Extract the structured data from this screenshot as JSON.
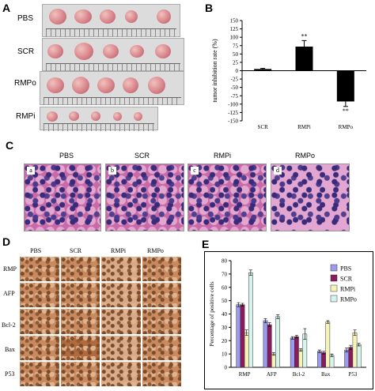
{
  "panels": {
    "A": "A",
    "B": "B",
    "C": "C",
    "D": "D",
    "E": "E"
  },
  "panelA": {
    "rows": [
      "PBS",
      "SCR",
      "RMPo",
      "RMPi"
    ],
    "ruler_marks": [
      "1cm",
      "2",
      "3",
      "4",
      "5",
      "6",
      "7",
      "8",
      "9",
      "10",
      "11"
    ]
  },
  "panelC": {
    "columns": [
      "PBS",
      "SCR",
      "RMPi",
      "RMPo"
    ],
    "sub_labels": [
      "a",
      "b",
      "c",
      "d"
    ]
  },
  "panelD": {
    "columns": [
      "PBS",
      "SCR",
      "RMPi",
      "RMPo"
    ],
    "rows": [
      "RMP",
      "AFP",
      "Bcl-2",
      "Bax",
      "P53"
    ]
  },
  "chart_data": [
    {
      "type": "bar",
      "panel": "B",
      "categories": [
        "SCR",
        "RMPi",
        "RMPo"
      ],
      "values": [
        5,
        72,
        -92
      ],
      "errors": [
        2,
        18,
        15
      ],
      "annotations": [
        "",
        "**",
        "**"
      ],
      "ylabel": "tumor inhibition rate (%)",
      "ylim": [
        -150,
        150
      ],
      "yticks": [
        150,
        125,
        100,
        75,
        50,
        25,
        0,
        -25,
        -50,
        -75,
        -100,
        -125,
        -150
      ],
      "bar_color": "#000000"
    },
    {
      "type": "bar",
      "panel": "E",
      "categories": [
        "RMP",
        "AFP",
        "Bcl-2",
        "Bax",
        "P53"
      ],
      "series": [
        {
          "name": "PBS",
          "color": "#9b9bef",
          "values": [
            47,
            35,
            22,
            12,
            13
          ],
          "errors": [
            1.5,
            1.5,
            1,
            1,
            1.5
          ]
        },
        {
          "name": "SCR",
          "color": "#8b1a5c",
          "values": [
            47,
            32,
            23,
            11,
            15
          ],
          "errors": [
            1,
            1.5,
            1,
            1,
            1.5
          ]
        },
        {
          "name": "RMPi",
          "color": "#f6f3b8",
          "values": [
            26,
            10,
            13,
            34,
            26
          ],
          "errors": [
            2,
            1,
            1,
            1,
            2
          ]
        },
        {
          "name": "RMPo",
          "color": "#d6f3ec",
          "values": [
            71,
            38,
            25,
            9,
            17
          ],
          "errors": [
            2,
            1.5,
            4,
            1,
            1
          ]
        }
      ],
      "ylabel": "Percentage of positive cells",
      "ylim": [
        0,
        80
      ],
      "yticks": [
        0,
        10,
        20,
        30,
        40,
        50,
        60,
        70,
        80
      ]
    }
  ]
}
